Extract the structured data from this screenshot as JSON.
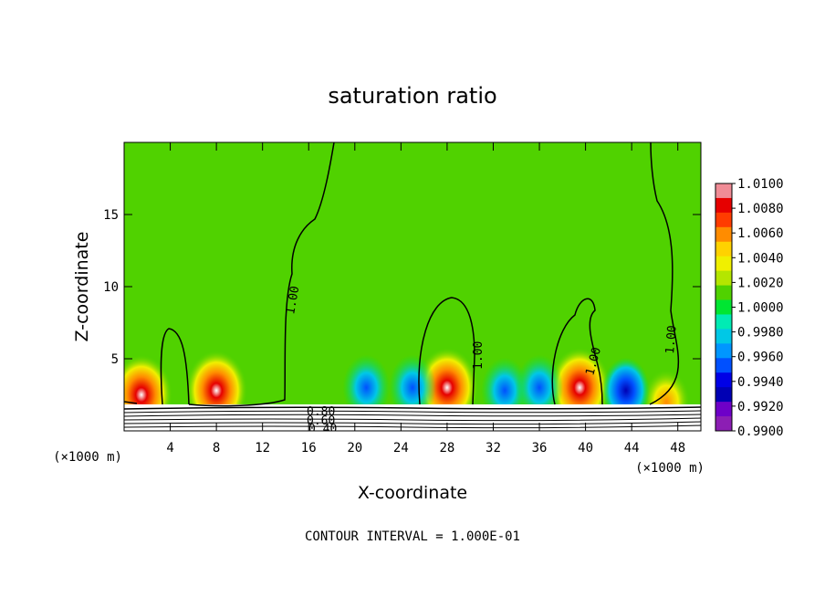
{
  "chart_data": {
    "type": "heatmap",
    "title": "saturation ratio",
    "xlabel": "X-coordinate",
    "ylabel": "Z-coordinate",
    "x_unit": "(×1000 m)",
    "xlim": [
      0,
      50
    ],
    "ylim": [
      0,
      20
    ],
    "x_ticks": [
      4,
      8,
      12,
      16,
      20,
      24,
      28,
      32,
      36,
      40,
      44,
      48
    ],
    "y_ticks": [
      5,
      10,
      15
    ],
    "footer": "CONTOUR INTERVAL = 1.000E-01",
    "colorbar": {
      "labels": [
        "1.0100",
        "1.0080",
        "1.0060",
        "1.0040",
        "1.0020",
        "1.0000",
        "0.9980",
        "0.9960",
        "0.9940",
        "0.9920",
        "0.9900"
      ],
      "colors": [
        "#f08c96",
        "#e60000",
        "#ff3c00",
        "#ff8c00",
        "#ffd200",
        "#f0f000",
        "#b4e600",
        "#50d200",
        "#00e632",
        "#00ebb4",
        "#00c8e6",
        "#0096ff",
        "#0050ff",
        "#0000e6",
        "#0000b4",
        "#6e00c8",
        "#8c1eb4"
      ]
    },
    "contour_labels": [
      "1.00",
      "1.00",
      "1.00",
      "1.00",
      "0.80",
      "0.60",
      "0.40"
    ],
    "hot_spots": [
      {
        "x": 1.5,
        "z": 2.5,
        "level": "high"
      },
      {
        "x": 8,
        "z": 2.8,
        "level": "high"
      },
      {
        "x": 28,
        "z": 3.0,
        "level": "high"
      },
      {
        "x": 39.5,
        "z": 3.0,
        "level": "high"
      },
      {
        "x": 47,
        "z": 2.0,
        "level": "medium"
      }
    ],
    "cold_spots": [
      {
        "x": 21,
        "z": 3.0,
        "level": "low"
      },
      {
        "x": 25,
        "z": 3.0,
        "level": "low"
      },
      {
        "x": 33,
        "z": 2.8,
        "level": "low"
      },
      {
        "x": 36,
        "z": 3.0,
        "level": "low"
      },
      {
        "x": 43.5,
        "z": 2.8,
        "level": "very-low"
      }
    ]
  }
}
